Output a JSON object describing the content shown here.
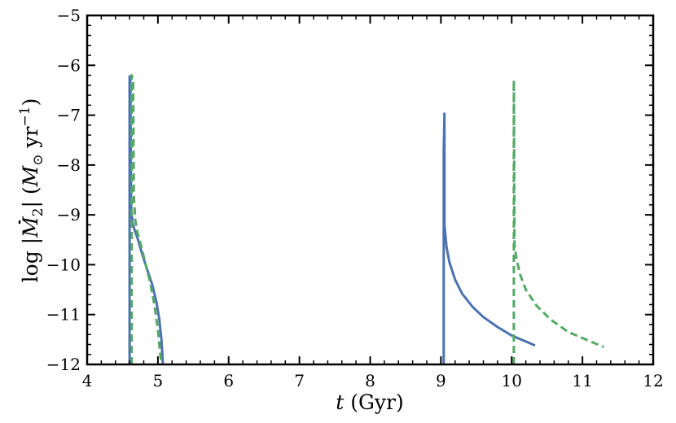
{
  "chart_data": {
    "type": "line",
    "xlabel_italic": "t",
    "xlabel_rest": " (Gyr)",
    "ylabel_prefix": "log |",
    "ylabel_M": "M",
    "ylabel_sub2": "2",
    "ylabel_mid": "| (",
    "ylabel_Msun": "M",
    "ylabel_sun": "⊙",
    "ylabel_yr": " yr",
    "ylabel_exp": "−1",
    "ylabel_close": ")",
    "xlim": [
      4,
      12
    ],
    "ylim": [
      -12,
      -5
    ],
    "x_ticks": [
      4,
      5,
      6,
      7,
      8,
      9,
      10,
      11,
      12
    ],
    "x_tick_labels": [
      "4",
      "5",
      "6",
      "7",
      "8",
      "9",
      "10",
      "11",
      "12"
    ],
    "y_ticks": [
      -5,
      -6,
      -7,
      -8,
      -9,
      -10,
      -11,
      -12
    ],
    "y_tick_labels": [
      "−5",
      "−6",
      "−7",
      "−8",
      "−9",
      "−10",
      "−11",
      "−12"
    ],
    "grid": false,
    "series": [
      {
        "style": "solid",
        "color": "#4c72b0",
        "segments": [
          [
            [
              4.6,
              -12.0
            ],
            [
              4.6,
              -6.22
            ],
            [
              4.61,
              -6.3
            ],
            [
              4.62,
              -8.8
            ],
            [
              4.64,
              -9.15
            ],
            [
              4.67,
              -9.3
            ],
            [
              4.72,
              -9.5
            ],
            [
              4.78,
              -9.8
            ],
            [
              4.85,
              -10.1
            ],
            [
              4.92,
              -10.4
            ],
            [
              4.98,
              -10.75
            ],
            [
              5.02,
              -11.1
            ],
            [
              5.05,
              -11.5
            ],
            [
              5.07,
              -12.0
            ]
          ],
          [
            [
              9.04,
              -12.0
            ],
            [
              9.04,
              -9.6
            ],
            [
              9.04,
              -7.75
            ],
            [
              9.05,
              -6.97
            ],
            [
              9.05,
              -9.2
            ],
            [
              9.08,
              -9.65
            ],
            [
              9.12,
              -9.95
            ],
            [
              9.2,
              -10.3
            ],
            [
              9.3,
              -10.58
            ],
            [
              9.45,
              -10.85
            ],
            [
              9.6,
              -11.05
            ],
            [
              9.8,
              -11.25
            ],
            [
              10.0,
              -11.42
            ],
            [
              10.2,
              -11.54
            ],
            [
              10.33,
              -11.62
            ]
          ]
        ]
      },
      {
        "style": "dashed",
        "color": "#55a868",
        "segments": [
          [
            [
              4.63,
              -12.0
            ],
            [
              4.63,
              -6.2
            ],
            [
              4.65,
              -6.3
            ],
            [
              4.66,
              -8.6
            ],
            [
              4.68,
              -9.1
            ],
            [
              4.71,
              -9.35
            ],
            [
              4.76,
              -9.6
            ],
            [
              4.82,
              -9.95
            ],
            [
              4.89,
              -10.35
            ],
            [
              4.95,
              -10.8
            ],
            [
              5.0,
              -11.3
            ],
            [
              5.03,
              -11.75
            ],
            [
              5.05,
              -12.0
            ]
          ],
          [
            [
              10.03,
              -12.0
            ],
            [
              10.03,
              -6.3
            ],
            [
              10.04,
              -9.6
            ],
            [
              10.07,
              -9.9
            ],
            [
              10.12,
              -10.2
            ],
            [
              10.2,
              -10.5
            ],
            [
              10.35,
              -10.82
            ],
            [
              10.55,
              -11.1
            ],
            [
              10.8,
              -11.35
            ],
            [
              11.05,
              -11.5
            ],
            [
              11.3,
              -11.65
            ]
          ]
        ]
      }
    ]
  }
}
